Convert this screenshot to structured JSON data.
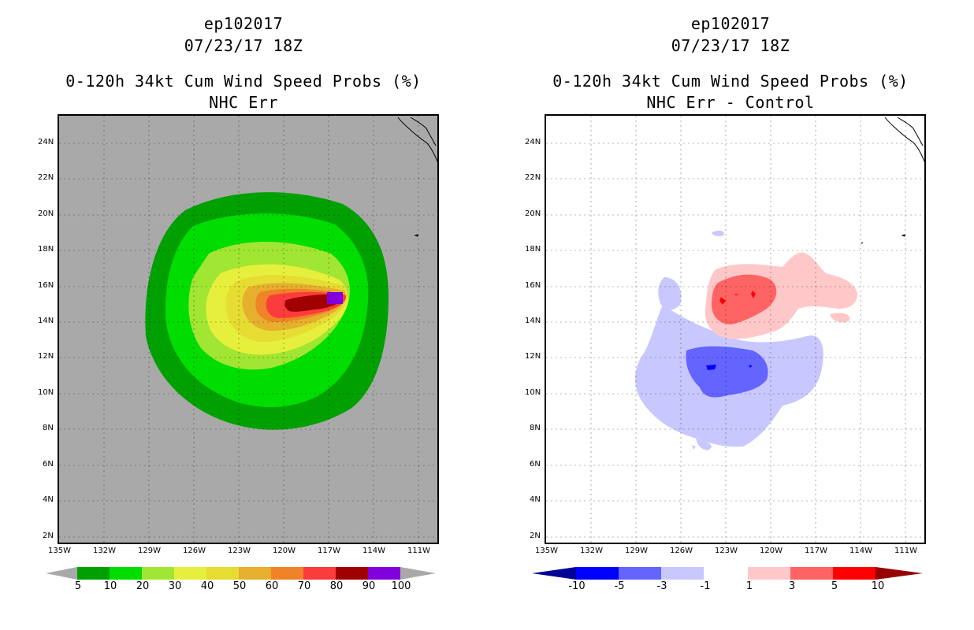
{
  "left": {
    "title_storm": "ep102017",
    "title_time": "07/23/17 18Z",
    "title_product": "0-120h 34kt Cum Wind Speed Probs (%)",
    "title_run": "NHC Err",
    "lat_labels": [
      "24N",
      "22N",
      "20N",
      "18N",
      "16N",
      "14N",
      "12N",
      "10N",
      "8N",
      "6N",
      "4N",
      "2N"
    ],
    "lon_labels": [
      "135W",
      "132W",
      "129W",
      "126W",
      "123W",
      "120W",
      "117W",
      "114W",
      "111W"
    ],
    "colorbar_labels": [
      "5",
      "10",
      "20",
      "30",
      "40",
      "50",
      "60",
      "70",
      "80",
      "90",
      "100"
    ],
    "colors": [
      "#a9a9a9",
      "#00a000",
      "#00dd00",
      "#a0e632",
      "#e6f03c",
      "#e6dc32",
      "#e6af2d",
      "#f08228",
      "#fa3c3c",
      "#a00000",
      "#8200dc"
    ]
  },
  "right": {
    "title_storm": "ep102017",
    "title_time": "07/23/17 18Z",
    "title_product": "0-120h 34kt Cum Wind Speed Probs (%)",
    "title_run": "NHC Err - Control",
    "lat_labels": [
      "24N",
      "22N",
      "20N",
      "18N",
      "16N",
      "14N",
      "12N",
      "10N",
      "8N",
      "6N",
      "4N",
      "2N"
    ],
    "lon_labels": [
      "135W",
      "132W",
      "129W",
      "126W",
      "123W",
      "120W",
      "117W",
      "114W",
      "111W"
    ],
    "colorbar_labels": [
      "-10",
      "-5",
      "-3",
      "-1",
      "1",
      "3",
      "5",
      "10"
    ],
    "colors": [
      "#000096",
      "#0000ff",
      "#6464ff",
      "#c8c8ff",
      "#ffffff",
      "#ffc8c8",
      "#ff6464",
      "#ff0000",
      "#960000"
    ]
  }
}
